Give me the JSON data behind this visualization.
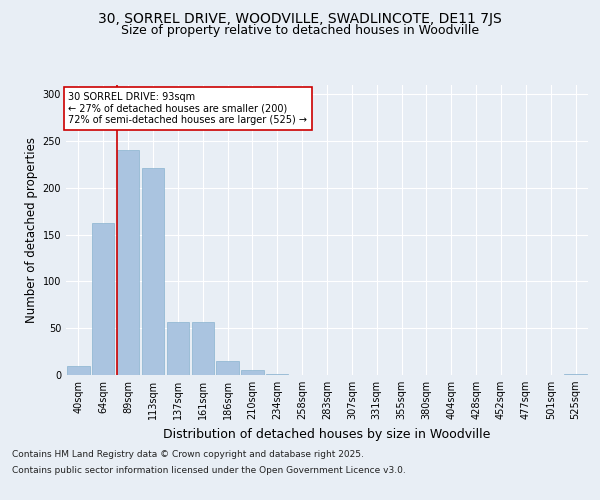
{
  "title1": "30, SORREL DRIVE, WOODVILLE, SWADLINCOTE, DE11 7JS",
  "title2": "Size of property relative to detached houses in Woodville",
  "xlabel": "Distribution of detached houses by size in Woodville",
  "ylabel": "Number of detached properties",
  "bar_labels": [
    "40sqm",
    "64sqm",
    "89sqm",
    "113sqm",
    "137sqm",
    "161sqm",
    "186sqm",
    "210sqm",
    "234sqm",
    "258sqm",
    "283sqm",
    "307sqm",
    "331sqm",
    "355sqm",
    "380sqm",
    "404sqm",
    "428sqm",
    "452sqm",
    "477sqm",
    "501sqm",
    "525sqm"
  ],
  "bar_values": [
    10,
    162,
    241,
    221,
    57,
    57,
    15,
    5,
    1,
    0,
    0,
    0,
    0,
    0,
    0,
    0,
    0,
    0,
    0,
    0,
    1
  ],
  "bar_color": "#aac4e0",
  "bar_edge_color": "#8ab4d0",
  "vline_x": 2,
  "vline_color": "#cc0000",
  "annotation_text": "30 SORREL DRIVE: 93sqm\n← 27% of detached houses are smaller (200)\n72% of semi-detached houses are larger (525) →",
  "annotation_box_color": "#ffffff",
  "annotation_box_edge": "#cc0000",
  "ylim": [
    0,
    310
  ],
  "yticks": [
    0,
    50,
    100,
    150,
    200,
    250,
    300
  ],
  "bg_color": "#e8eef5",
  "plot_bg_color": "#e8eef5",
  "footer1": "Contains HM Land Registry data © Crown copyright and database right 2025.",
  "footer2": "Contains public sector information licensed under the Open Government Licence v3.0.",
  "title_fontsize": 10,
  "subtitle_fontsize": 9,
  "tick_fontsize": 7,
  "ylabel_fontsize": 8.5,
  "xlabel_fontsize": 9
}
